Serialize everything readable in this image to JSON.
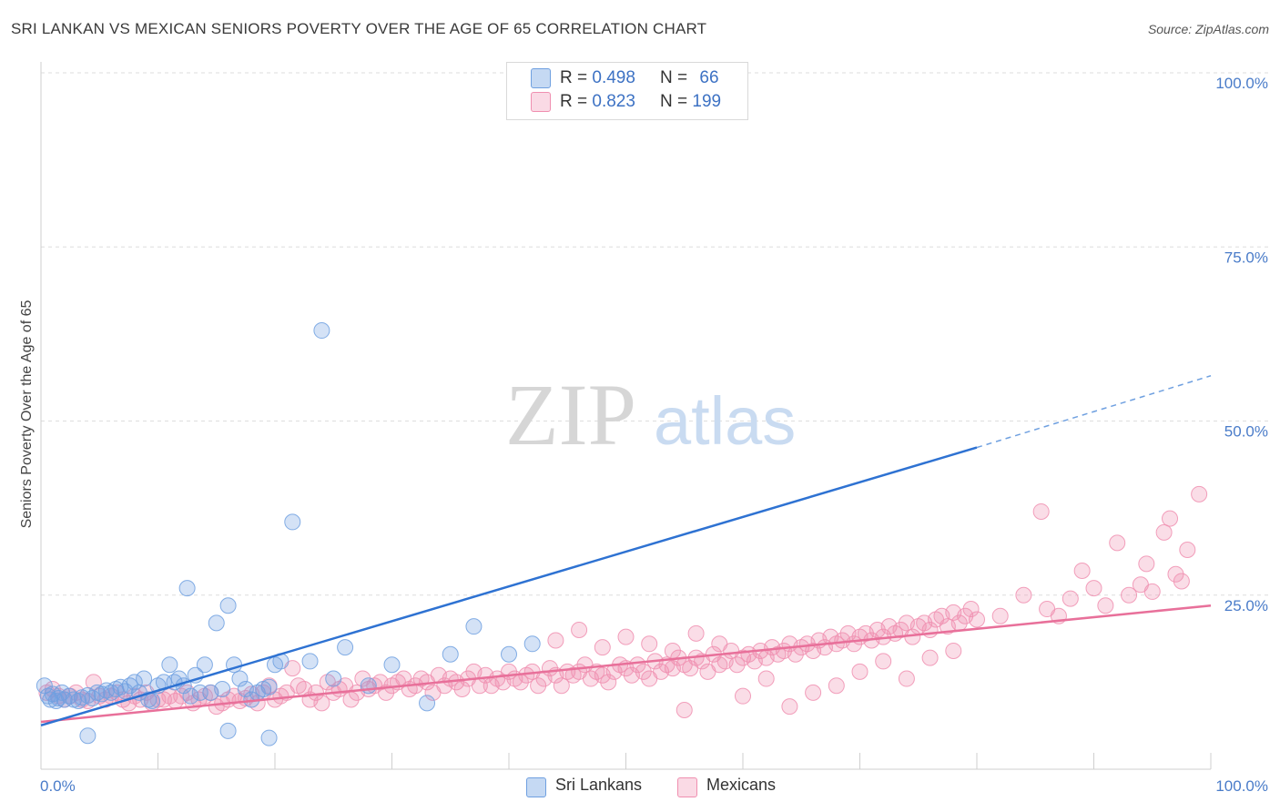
{
  "header": {
    "title": "SRI LANKAN VS MEXICAN SENIORS POVERTY OVER THE AGE OF 65 CORRELATION CHART",
    "source": "Source: ZipAtlas.com"
  },
  "watermark": {
    "zip": "ZIP",
    "atlas": "atlas"
  },
  "legend_top": {
    "rows": [
      {
        "r_label": "R =",
        "r_value": "0.498",
        "n_label": "N =",
        "n_value": "66",
        "color": "#6fa0e0"
      },
      {
        "r_label": "R =",
        "r_value": "0.823",
        "n_label": "N =",
        "n_value": "199",
        "color": "#f08fb0"
      }
    ]
  },
  "legend_bottom": {
    "items": [
      {
        "label": "Sri Lankans",
        "color": "#6fa0e0"
      },
      {
        "label": "Mexicans",
        "color": "#f08fb0"
      }
    ]
  },
  "chart_data": {
    "type": "scatter",
    "title": "SRI LANKAN VS MEXICAN SENIORS POVERTY OVER THE AGE OF 65 CORRELATION CHART",
    "xlabel": "",
    "ylabel": "Seniors Poverty Over the Age of 65",
    "xlim": [
      0,
      100
    ],
    "ylim": [
      0,
      100
    ],
    "x_tick_labels": [
      "0.0%",
      "100.0%"
    ],
    "y_tick_labels": [
      "25.0%",
      "50.0%",
      "75.0%",
      "100.0%"
    ],
    "y_ticks": [
      25,
      50,
      75,
      100
    ],
    "grid": true,
    "legend_position": "top-center",
    "series": [
      {
        "name": "Sri Lankans",
        "color": "#6fa0e0",
        "trend": {
          "x": [
            0,
            80
          ],
          "y": [
            6.3,
            46.2
          ],
          "dashed_to": [
            100,
            56.5
          ]
        },
        "points": [
          [
            0.3,
            12
          ],
          [
            0.6,
            10.5
          ],
          [
            0.8,
            10
          ],
          [
            1,
            10.8
          ],
          [
            1.3,
            9.8
          ],
          [
            1.5,
            10.2
          ],
          [
            1.8,
            11
          ],
          [
            2,
            10
          ],
          [
            2.4,
            10.5
          ],
          [
            2.8,
            10
          ],
          [
            3.2,
            9.8
          ],
          [
            3.5,
            10.3
          ],
          [
            4,
            10.6
          ],
          [
            4.4,
            10.2
          ],
          [
            4.8,
            11
          ],
          [
            5.2,
            10.8
          ],
          [
            5.6,
            11.3
          ],
          [
            6,
            11
          ],
          [
            6.4,
            11.5
          ],
          [
            6.8,
            11.8
          ],
          [
            7.2,
            11.2
          ],
          [
            7.6,
            12
          ],
          [
            8,
            12.5
          ],
          [
            8.4,
            11
          ],
          [
            8.8,
            13
          ],
          [
            9.2,
            10
          ],
          [
            9.5,
            9.8
          ],
          [
            10,
            12
          ],
          [
            10.5,
            12.5
          ],
          [
            11,
            15
          ],
          [
            11.4,
            12.5
          ],
          [
            11.8,
            13
          ],
          [
            12.2,
            12
          ],
          [
            12.5,
            26
          ],
          [
            12.8,
            10.5
          ],
          [
            13.2,
            13.5
          ],
          [
            13.6,
            11
          ],
          [
            14,
            15
          ],
          [
            14.5,
            11
          ],
          [
            15,
            21
          ],
          [
            15.5,
            11.5
          ],
          [
            16,
            23.5
          ],
          [
            16.5,
            15
          ],
          [
            17,
            13
          ],
          [
            17.5,
            11.5
          ],
          [
            18,
            10
          ],
          [
            18.5,
            11
          ],
          [
            19,
            11.5
          ],
          [
            19.5,
            11.8
          ],
          [
            20,
            15
          ],
          [
            20.5,
            15.5
          ],
          [
            21.5,
            35.5
          ],
          [
            23,
            15.5
          ],
          [
            24,
            63
          ],
          [
            25,
            13
          ],
          [
            26,
            17.5
          ],
          [
            28,
            12
          ],
          [
            30,
            15
          ],
          [
            33,
            9.5
          ],
          [
            35,
            16.5
          ],
          [
            37,
            20.5
          ],
          [
            40,
            16.5
          ],
          [
            42,
            18
          ],
          [
            4,
            4.8
          ],
          [
            16,
            5.5
          ],
          [
            19.5,
            4.5
          ]
        ]
      },
      {
        "name": "Mexicans",
        "color": "#f08fb0",
        "trend": {
          "x": [
            0,
            100
          ],
          "y": [
            6.8,
            23.5
          ]
        },
        "points": [
          [
            0.5,
            11
          ],
          [
            1,
            11.5
          ],
          [
            1.5,
            10.5
          ],
          [
            2,
            10
          ],
          [
            2.5,
            10.5
          ],
          [
            3,
            11
          ],
          [
            3.5,
            10
          ],
          [
            4,
            9.8
          ],
          [
            4.5,
            12.5
          ],
          [
            5,
            10.5
          ],
          [
            5.5,
            10
          ],
          [
            6,
            10.5
          ],
          [
            6.5,
            11
          ],
          [
            7,
            10
          ],
          [
            7.5,
            9.5
          ],
          [
            8,
            10.5
          ],
          [
            8.5,
            10
          ],
          [
            9,
            11
          ],
          [
            9.5,
            9.5
          ],
          [
            10,
            10
          ],
          [
            10.5,
            10
          ],
          [
            11,
            10.5
          ],
          [
            11.5,
            9.8
          ],
          [
            12,
            10.5
          ],
          [
            12.5,
            11
          ],
          [
            13,
            9.5
          ],
          [
            13.5,
            10
          ],
          [
            14,
            10.5
          ],
          [
            14.5,
            11
          ],
          [
            15,
            9
          ],
          [
            15.5,
            9.5
          ],
          [
            16,
            10
          ],
          [
            16.5,
            10.5
          ],
          [
            17,
            9.8
          ],
          [
            17.5,
            10.2
          ],
          [
            18,
            10.8
          ],
          [
            18.5,
            9.5
          ],
          [
            19,
            11
          ],
          [
            19.5,
            12
          ],
          [
            20,
            10
          ],
          [
            20.5,
            10.5
          ],
          [
            21,
            11
          ],
          [
            21.5,
            14.5
          ],
          [
            22,
            12
          ],
          [
            22.5,
            11.5
          ],
          [
            23,
            10
          ],
          [
            23.5,
            11
          ],
          [
            24,
            9.5
          ],
          [
            24.5,
            12.5
          ],
          [
            25,
            11
          ],
          [
            25.5,
            11.5
          ],
          [
            26,
            12
          ],
          [
            26.5,
            10
          ],
          [
            27,
            11
          ],
          [
            27.5,
            13
          ],
          [
            28,
            11.5
          ],
          [
            28.5,
            12
          ],
          [
            29,
            12.5
          ],
          [
            29.5,
            11
          ],
          [
            30,
            12
          ],
          [
            30.5,
            12.5
          ],
          [
            31,
            13
          ],
          [
            31.5,
            11.5
          ],
          [
            32,
            12
          ],
          [
            32.5,
            13
          ],
          [
            33,
            12.5
          ],
          [
            33.5,
            11
          ],
          [
            34,
            13.5
          ],
          [
            34.5,
            12
          ],
          [
            35,
            13
          ],
          [
            35.5,
            12.5
          ],
          [
            36,
            11.5
          ],
          [
            36.5,
            13
          ],
          [
            37,
            14
          ],
          [
            37.5,
            12
          ],
          [
            38,
            13.5
          ],
          [
            38.5,
            12
          ],
          [
            39,
            13
          ],
          [
            39.5,
            12.5
          ],
          [
            40,
            14
          ],
          [
            40.5,
            13
          ],
          [
            41,
            12.5
          ],
          [
            41.5,
            13.5
          ],
          [
            42,
            14
          ],
          [
            42.5,
            12
          ],
          [
            43,
            13
          ],
          [
            43.5,
            14.5
          ],
          [
            44,
            13.5
          ],
          [
            44.5,
            12
          ],
          [
            45,
            14
          ],
          [
            45.5,
            13.5
          ],
          [
            46,
            14
          ],
          [
            46.5,
            15
          ],
          [
            47,
            13
          ],
          [
            47.5,
            14
          ],
          [
            48,
            13.5
          ],
          [
            48.5,
            12.5
          ],
          [
            49,
            14
          ],
          [
            49.5,
            15
          ],
          [
            50,
            14.5
          ],
          [
            50.5,
            13.5
          ],
          [
            51,
            15
          ],
          [
            51.5,
            14
          ],
          [
            52,
            13
          ],
          [
            52.5,
            15.5
          ],
          [
            53,
            14
          ],
          [
            53.5,
            15
          ],
          [
            54,
            14.5
          ],
          [
            54.5,
            16
          ],
          [
            55,
            15
          ],
          [
            55.5,
            14.5
          ],
          [
            56,
            16
          ],
          [
            56.5,
            15.5
          ],
          [
            57,
            14
          ],
          [
            57.5,
            16.5
          ],
          [
            58,
            15
          ],
          [
            58.5,
            15.5
          ],
          [
            59,
            17
          ],
          [
            59.5,
            15
          ],
          [
            60,
            16
          ],
          [
            60.5,
            16.5
          ],
          [
            61,
            15.5
          ],
          [
            61.5,
            17
          ],
          [
            62,
            16
          ],
          [
            62.5,
            17.5
          ],
          [
            63,
            16.5
          ],
          [
            63.5,
            17
          ],
          [
            64,
            18
          ],
          [
            64.5,
            16.5
          ],
          [
            65,
            17.5
          ],
          [
            65.5,
            18
          ],
          [
            66,
            17
          ],
          [
            66.5,
            18.5
          ],
          [
            67,
            17.5
          ],
          [
            67.5,
            19
          ],
          [
            68,
            18
          ],
          [
            68.5,
            18.5
          ],
          [
            69,
            19.5
          ],
          [
            69.5,
            18
          ],
          [
            70,
            19
          ],
          [
            70.5,
            19.5
          ],
          [
            71,
            18.5
          ],
          [
            71.5,
            20
          ],
          [
            72,
            19
          ],
          [
            72.5,
            20.5
          ],
          [
            73,
            19.5
          ],
          [
            73.5,
            20
          ],
          [
            74,
            21
          ],
          [
            74.5,
            19
          ],
          [
            75,
            20.5
          ],
          [
            75.5,
            21
          ],
          [
            76,
            20
          ],
          [
            76.5,
            21.5
          ],
          [
            77,
            22
          ],
          [
            77.5,
            20.5
          ],
          [
            78,
            22.5
          ],
          [
            78.5,
            21
          ],
          [
            79,
            22
          ],
          [
            79.5,
            23
          ],
          [
            80,
            21.5
          ],
          [
            82,
            22
          ],
          [
            84,
            25
          ],
          [
            85.5,
            37
          ],
          [
            86,
            23
          ],
          [
            87,
            22
          ],
          [
            88,
            24.5
          ],
          [
            89,
            28.5
          ],
          [
            90,
            26
          ],
          [
            91,
            23.5
          ],
          [
            92,
            32.5
          ],
          [
            93,
            25
          ],
          [
            94,
            26.5
          ],
          [
            94.5,
            29.5
          ],
          [
            95,
            25.5
          ],
          [
            96,
            34
          ],
          [
            96.5,
            36
          ],
          [
            97,
            28
          ],
          [
            97.5,
            27
          ],
          [
            98,
            31.5
          ],
          [
            99,
            39.5
          ],
          [
            55,
            8.5
          ],
          [
            60,
            10.5
          ],
          [
            62,
            13
          ],
          [
            64,
            9
          ],
          [
            66,
            11
          ],
          [
            68,
            12
          ],
          [
            70,
            14
          ],
          [
            72,
            15.5
          ],
          [
            74,
            13
          ],
          [
            76,
            16
          ],
          [
            78,
            17
          ],
          [
            44,
            18.5
          ],
          [
            46,
            20
          ],
          [
            48,
            17.5
          ],
          [
            50,
            19
          ],
          [
            52,
            18
          ],
          [
            54,
            17
          ],
          [
            56,
            19.5
          ],
          [
            58,
            18
          ]
        ]
      }
    ]
  }
}
